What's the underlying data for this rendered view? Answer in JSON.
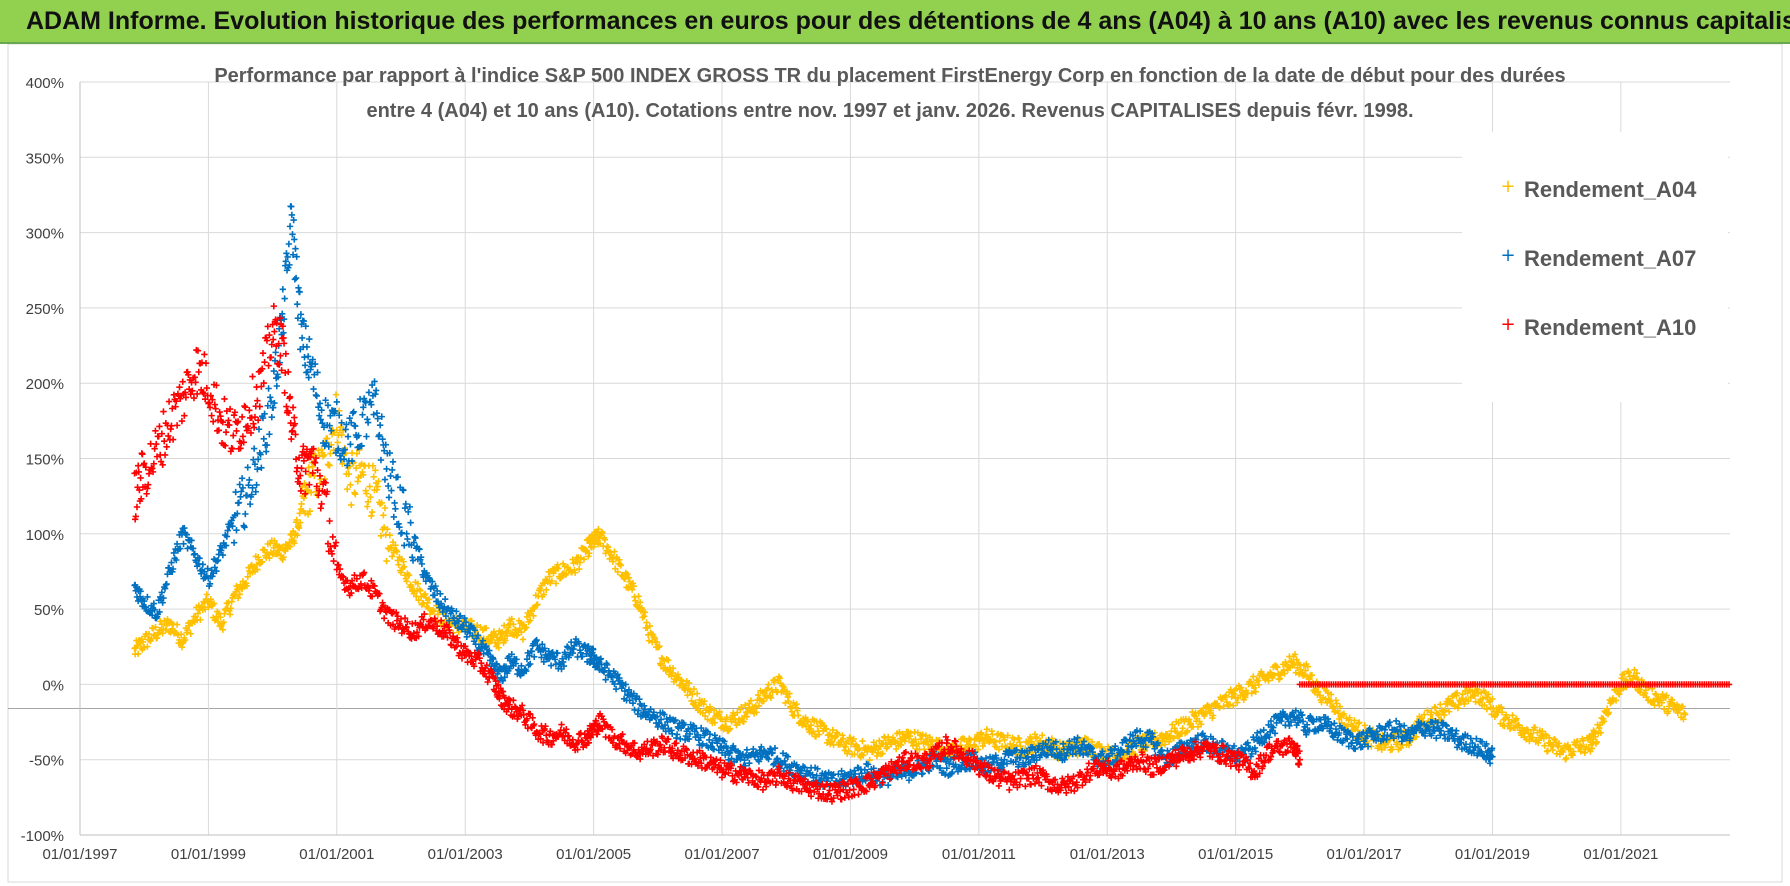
{
  "banner": {
    "title": "ADAM Informe. Evolution historique des performances en euros pour des détentions de 4 ans (A04) à 10 ans (A10) avec les revenus connus capitalisés"
  },
  "colors": {
    "banner_bg": "#92d050",
    "A04": "#ffc000",
    "A07": "#0070c0",
    "A10": "#ff0000",
    "grid": "#d9d9d9",
    "axis_text": "#404040",
    "title_text": "#595959"
  },
  "chart_data": {
    "type": "scatter",
    "marker": "+",
    "title_lines": [
      "Performance par rapport à l'indice S&P 500 INDEX GROSS TR  du placement FirstEnergy Corp en fonction de la date de début pour des durées",
      "entre 4 (A04) et 10 ans (A10). Cotations entre nov. 1997 et janv. 2026. Revenus CAPITALISES depuis févr. 1998."
    ],
    "xlabel": "",
    "ylabel": "",
    "x_range": [
      1997.0,
      2022.7
    ],
    "x_ticks": [
      1997,
      1999,
      2001,
      2003,
      2005,
      2007,
      2009,
      2011,
      2013,
      2015,
      2017,
      2019,
      2021
    ],
    "x_tick_labels": [
      "01/01/1997",
      "01/01/1999",
      "01/01/2001",
      "01/01/2003",
      "01/01/2005",
      "01/01/2007",
      "01/01/2009",
      "01/01/2011",
      "01/01/2013",
      "01/01/2015",
      "01/01/2017",
      "01/01/2019",
      "01/01/2021"
    ],
    "ylim": [
      -100,
      400
    ],
    "y_ticks": [
      -100,
      -50,
      0,
      50,
      100,
      150,
      200,
      250,
      300,
      350,
      400
    ],
    "y_tick_labels": [
      "-100%",
      "-50%",
      "0%",
      "50%",
      "100%",
      "150%",
      "200%",
      "250%",
      "300%",
      "350%",
      "400%"
    ],
    "legend_position": "top-right",
    "series": [
      {
        "name": "Rendement_A04",
        "color": "#ffc000",
        "x": [
          1997.85,
          1998.0,
          1998.2,
          1998.4,
          1998.6,
          1998.8,
          1999.0,
          1999.2,
          1999.4,
          1999.6,
          1999.8,
          2000.0,
          2000.15,
          2000.3,
          2000.45,
          2000.6,
          2000.8,
          2001.0,
          2001.2,
          2001.4,
          2001.6,
          2001.8,
          2002.0,
          2002.2,
          2002.4,
          2002.6,
          2002.8,
          2003.0,
          2003.2,
          2003.4,
          2003.55,
          2003.7,
          2003.9,
          2004.1,
          2004.3,
          2004.5,
          2004.7,
          2004.9,
          2005.0,
          2005.1,
          2005.3,
          2005.5,
          2005.7,
          2005.9,
          2006.1,
          2006.3,
          2006.5,
          2006.7,
          2006.9,
          2007.1,
          2007.3,
          2007.5,
          2007.7,
          2007.9,
          2008.1,
          2008.3,
          2008.5,
          2008.7,
          2008.9,
          2009.1,
          2009.3,
          2009.5,
          2009.7,
          2009.9,
          2010.1,
          2010.3,
          2010.5,
          2010.7,
          2010.9,
          2011.1,
          2011.3,
          2011.5,
          2011.7,
          2011.9,
          2012.1,
          2012.3,
          2012.5,
          2012.7,
          2012.9,
          2013.1,
          2013.3,
          2013.5,
          2013.7,
          2013.9,
          2014.1,
          2014.3,
          2014.5,
          2014.7,
          2014.9,
          2015.1,
          2015.3,
          2015.5,
          2015.7,
          2015.9,
          2016.1,
          2016.3,
          2016.5,
          2016.7,
          2016.9,
          2017.1,
          2017.3,
          2017.5,
          2017.7,
          2017.9,
          2018.1,
          2018.3,
          2018.5,
          2018.7,
          2018.9,
          2019.1,
          2019.3,
          2019.5,
          2019.7,
          2019.9,
          2020.1,
          2020.3,
          2020.5,
          2020.6,
          2020.8,
          2021.0,
          2021.2,
          2021.4,
          2021.6,
          2021.8,
          2022.0
        ],
        "y": [
          22,
          28,
          35,
          40,
          30,
          45,
          55,
          40,
          58,
          70,
          85,
          90,
          88,
          95,
          112,
          135,
          145,
          180,
          135,
          140,
          125,
          95,
          80,
          65,
          55,
          45,
          40,
          38,
          35,
          30,
          30,
          40,
          35,
          55,
          70,
          75,
          78,
          90,
          95,
          98,
          85,
          70,
          55,
          30,
          15,
          5,
          -5,
          -15,
          -22,
          -25,
          -20,
          -15,
          -5,
          0,
          -15,
          -25,
          -30,
          -35,
          -40,
          -42,
          -45,
          -40,
          -38,
          -35,
          -38,
          -40,
          -45,
          -42,
          -40,
          -35,
          -38,
          -40,
          -42,
          -38,
          -40,
          -45,
          -42,
          -40,
          -45,
          -48,
          -45,
          -40,
          -38,
          -35,
          -30,
          -25,
          -20,
          -15,
          -10,
          -5,
          0,
          5,
          10,
          15,
          8,
          -5,
          -10,
          -25,
          -30,
          -35,
          -40,
          -38,
          -35,
          -25,
          -20,
          -15,
          -10,
          -5,
          -10,
          -20,
          -25,
          -30,
          -35,
          -40,
          -45,
          -42,
          -40,
          -35,
          -15,
          0,
          5,
          -5,
          -10,
          -15,
          -20
        ]
      },
      {
        "name": "Rendement_A07",
        "color": "#0070c0",
        "x": [
          1997.85,
          1998.0,
          1998.2,
          1998.4,
          1998.6,
          1998.8,
          1999.0,
          1999.2,
          1999.4,
          1999.6,
          1999.8,
          2000.0,
          2000.15,
          2000.3,
          2000.45,
          2000.6,
          2000.8,
          2001.0,
          2001.2,
          2001.4,
          2001.6,
          2001.8,
          2002.0,
          2002.2,
          2002.4,
          2002.6,
          2002.8,
          2003.0,
          2003.2,
          2003.4,
          2003.55,
          2003.7,
          2003.9,
          2004.1,
          2004.3,
          2004.5,
          2004.7,
          2004.9,
          2005.0,
          2005.1,
          2005.3,
          2005.5,
          2005.7,
          2005.9,
          2006.1,
          2006.3,
          2006.5,
          2006.7,
          2006.9,
          2007.1,
          2007.3,
          2007.5,
          2007.7,
          2007.9,
          2008.1,
          2008.3,
          2008.5,
          2008.7,
          2008.9,
          2009.1,
          2009.3,
          2009.5,
          2009.7,
          2009.9,
          2010.1,
          2010.3,
          2010.5,
          2010.7,
          2010.9,
          2011.1,
          2011.3,
          2011.5,
          2011.7,
          2011.9,
          2012.1,
          2012.3,
          2012.5,
          2012.7,
          2012.9,
          2013.1,
          2013.3,
          2013.5,
          2013.7,
          2013.9,
          2014.1,
          2014.3,
          2014.5,
          2014.7,
          2014.9,
          2015.1,
          2015.3,
          2015.5,
          2015.7,
          2015.9,
          2016.1,
          2016.3,
          2016.5,
          2016.7,
          2016.9,
          2017.1,
          2017.3,
          2017.5,
          2017.7,
          2017.9,
          2018.1,
          2018.3,
          2018.5,
          2018.7,
          2018.9,
          2019.0
        ],
        "y": [
          65,
          55,
          48,
          75,
          100,
          85,
          70,
          88,
          110,
          125,
          155,
          190,
          240,
          310,
          230,
          210,
          175,
          170,
          160,
          175,
          185,
          140,
          115,
          95,
          70,
          55,
          45,
          38,
          28,
          15,
          5,
          15,
          10,
          25,
          18,
          15,
          25,
          20,
          18,
          12,
          5,
          -5,
          -15,
          -20,
          -25,
          -30,
          -32,
          -35,
          -40,
          -45,
          -50,
          -48,
          -45,
          -50,
          -55,
          -58,
          -62,
          -65,
          -63,
          -60,
          -58,
          -62,
          -60,
          -58,
          -55,
          -50,
          -55,
          -52,
          -50,
          -55,
          -52,
          -48,
          -50,
          -45,
          -42,
          -45,
          -40,
          -45,
          -50,
          -48,
          -40,
          -35,
          -38,
          -50,
          -45,
          -40,
          -38,
          -42,
          -45,
          -48,
          -40,
          -30,
          -25,
          -20,
          -28,
          -25,
          -30,
          -35,
          -38,
          -35,
          -32,
          -30,
          -35,
          -28,
          -30,
          -32,
          -38,
          -40,
          -45,
          -48
        ]
      },
      {
        "name": "Rendement_A10",
        "color": "#ff0000",
        "x": [
          1997.85,
          1998.0,
          1998.2,
          1998.4,
          1998.6,
          1998.8,
          1999.0,
          1999.2,
          1999.4,
          1999.6,
          1999.8,
          2000.0,
          2000.15,
          2000.3,
          2000.45,
          2000.6,
          2000.8,
          2001.0,
          2001.2,
          2001.4,
          2001.6,
          2001.8,
          2002.0,
          2002.2,
          2002.4,
          2002.6,
          2002.8,
          2003.0,
          2003.2,
          2003.4,
          2003.55,
          2003.7,
          2003.9,
          2004.1,
          2004.3,
          2004.5,
          2004.7,
          2004.9,
          2005.0,
          2005.1,
          2005.3,
          2005.5,
          2005.7,
          2005.9,
          2006.1,
          2006.3,
          2006.5,
          2006.7,
          2006.9,
          2007.1,
          2007.3,
          2007.5,
          2007.7,
          2007.9,
          2008.1,
          2008.3,
          2008.5,
          2008.7,
          2008.9,
          2009.1,
          2009.3,
          2009.5,
          2009.7,
          2009.9,
          2010.1,
          2010.3,
          2010.5,
          2010.7,
          2010.9,
          2011.1,
          2011.3,
          2011.5,
          2011.7,
          2011.9,
          2012.1,
          2012.3,
          2012.5,
          2012.7,
          2012.9,
          2013.1,
          2013.3,
          2013.5,
          2013.7,
          2013.9,
          2014.1,
          2014.3,
          2014.5,
          2014.7,
          2014.9,
          2015.1,
          2015.3,
          2015.5,
          2015.7,
          2015.9,
          2016.0
        ],
        "y": [
          125,
          140,
          155,
          175,
          190,
          210,
          200,
          175,
          165,
          180,
          195,
          235,
          225,
          170,
          140,
          150,
          125,
          75,
          65,
          70,
          60,
          45,
          40,
          35,
          42,
          38,
          30,
          20,
          15,
          5,
          -8,
          -15,
          -20,
          -30,
          -35,
          -32,
          -38,
          -35,
          -30,
          -25,
          -35,
          -40,
          -45,
          -42,
          -40,
          -45,
          -48,
          -50,
          -55,
          -58,
          -60,
          -62,
          -65,
          -60,
          -65,
          -68,
          -70,
          -72,
          -70,
          -68,
          -65,
          -60,
          -55,
          -50,
          -52,
          -48,
          -40,
          -45,
          -50,
          -58,
          -62,
          -65,
          -62,
          -60,
          -65,
          -68,
          -65,
          -58,
          -55,
          -58,
          -55,
          -50,
          -55,
          -52,
          -48,
          -45,
          -42,
          -45,
          -48,
          -52,
          -58,
          -45,
          -42,
          -40,
          -50
        ]
      },
      {
        "name": "Rendement_A10 (0%)",
        "color": "#ff0000",
        "x_start": 2016.0,
        "x_end": 2022.7,
        "value": 0
      }
    ]
  }
}
